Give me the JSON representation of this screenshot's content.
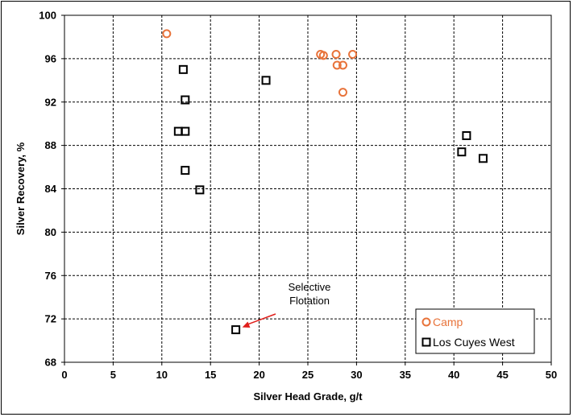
{
  "chart_data": {
    "type": "scatter",
    "title": "",
    "xlabel": "Silver Head Grade, g/t",
    "ylabel": "Silver Recovery, %",
    "xlim": [
      0,
      50
    ],
    "ylim": [
      68,
      100
    ],
    "xticks": [
      "0",
      "5",
      "10",
      "15",
      "20",
      "25",
      "30",
      "35",
      "40",
      "45",
      "50"
    ],
    "yticks": [
      "68",
      "72",
      "76",
      "80",
      "84",
      "88",
      "92",
      "96",
      "100"
    ],
    "grid": true,
    "legend_position": "bottom-right",
    "series": [
      {
        "name": "Camp",
        "marker": "circle",
        "color": "#E8733A",
        "points": [
          {
            "x": 10.5,
            "y": 98.3
          },
          {
            "x": 26.3,
            "y": 96.4
          },
          {
            "x": 26.6,
            "y": 96.3
          },
          {
            "x": 27.9,
            "y": 96.4
          },
          {
            "x": 29.6,
            "y": 96.4
          },
          {
            "x": 28.0,
            "y": 95.4
          },
          {
            "x": 28.6,
            "y": 95.4
          },
          {
            "x": 28.6,
            "y": 92.9
          }
        ]
      },
      {
        "name": "Los Cuyes West",
        "marker": "square",
        "color": "#000000",
        "points": [
          {
            "x": 12.2,
            "y": 95.0
          },
          {
            "x": 12.4,
            "y": 92.2
          },
          {
            "x": 11.7,
            "y": 89.3
          },
          {
            "x": 12.4,
            "y": 89.3
          },
          {
            "x": 12.4,
            "y": 85.7
          },
          {
            "x": 13.9,
            "y": 83.9
          },
          {
            "x": 20.7,
            "y": 94.0
          },
          {
            "x": 17.6,
            "y": 71.0
          },
          {
            "x": 41.3,
            "y": 88.9
          },
          {
            "x": 40.8,
            "y": 87.4
          },
          {
            "x": 43.0,
            "y": 86.8
          }
        ]
      }
    ],
    "annotations": [
      {
        "text_lines": [
          "Selective",
          "Flotation"
        ],
        "points_to": {
          "x": 17.6,
          "y": 71.0
        }
      }
    ]
  }
}
